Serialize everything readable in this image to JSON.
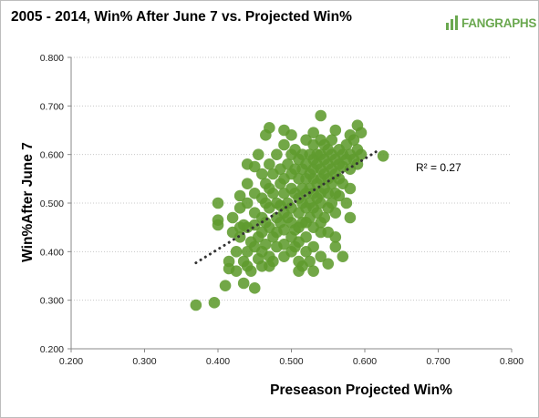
{
  "chart_data": {
    "type": "scatter",
    "title": "2005 - 2014, Win% After June 7 vs. Projected Win%",
    "xlabel": "Preseason Projected Win%",
    "ylabel": "Win%After  June 7",
    "xlim": [
      0.2,
      0.8
    ],
    "ylim": [
      0.2,
      0.8
    ],
    "xticks": [
      "0.200",
      "0.300",
      "0.400",
      "0.500",
      "0.600",
      "0.700",
      "0.800"
    ],
    "yticks": [
      "0.200",
      "0.300",
      "0.400",
      "0.500",
      "0.600",
      "0.700",
      "0.800"
    ],
    "grid": "horizontal dotted",
    "trendline": {
      "style": "dotted",
      "color": "#333333",
      "x": [
        0.37,
        0.62
      ],
      "y": [
        0.377,
        0.61
      ]
    },
    "annotation": "R² = 0.27",
    "point_color": "#5f9b2d",
    "points": [
      [
        0.37,
        0.29
      ],
      [
        0.395,
        0.295
      ],
      [
        0.4,
        0.5
      ],
      [
        0.4,
        0.465
      ],
      [
        0.4,
        0.455
      ],
      [
        0.41,
        0.33
      ],
      [
        0.415,
        0.38
      ],
      [
        0.415,
        0.365
      ],
      [
        0.42,
        0.47
      ],
      [
        0.42,
        0.44
      ],
      [
        0.425,
        0.36
      ],
      [
        0.425,
        0.4
      ],
      [
        0.43,
        0.43
      ],
      [
        0.43,
        0.515
      ],
      [
        0.43,
        0.49
      ],
      [
        0.43,
        0.45
      ],
      [
        0.435,
        0.455
      ],
      [
        0.435,
        0.38
      ],
      [
        0.435,
        0.335
      ],
      [
        0.44,
        0.58
      ],
      [
        0.44,
        0.54
      ],
      [
        0.44,
        0.5
      ],
      [
        0.44,
        0.45
      ],
      [
        0.44,
        0.4
      ],
      [
        0.44,
        0.37
      ],
      [
        0.445,
        0.42
      ],
      [
        0.445,
        0.36
      ],
      [
        0.45,
        0.575
      ],
      [
        0.45,
        0.52
      ],
      [
        0.45,
        0.48
      ],
      [
        0.45,
        0.455
      ],
      [
        0.45,
        0.41
      ],
      [
        0.45,
        0.325
      ],
      [
        0.455,
        0.6
      ],
      [
        0.455,
        0.43
      ],
      [
        0.455,
        0.385
      ],
      [
        0.46,
        0.56
      ],
      [
        0.46,
        0.51
      ],
      [
        0.46,
        0.47
      ],
      [
        0.46,
        0.44
      ],
      [
        0.46,
        0.4
      ],
      [
        0.46,
        0.37
      ],
      [
        0.465,
        0.64
      ],
      [
        0.465,
        0.54
      ],
      [
        0.465,
        0.5
      ],
      [
        0.465,
        0.46
      ],
      [
        0.465,
        0.415
      ],
      [
        0.47,
        0.655
      ],
      [
        0.47,
        0.58
      ],
      [
        0.47,
        0.53
      ],
      [
        0.47,
        0.49
      ],
      [
        0.47,
        0.45
      ],
      [
        0.47,
        0.39
      ],
      [
        0.47,
        0.37
      ],
      [
        0.475,
        0.56
      ],
      [
        0.475,
        0.52
      ],
      [
        0.475,
        0.43
      ],
      [
        0.475,
        0.38
      ],
      [
        0.48,
        0.6
      ],
      [
        0.48,
        0.5
      ],
      [
        0.48,
        0.47
      ],
      [
        0.48,
        0.44
      ],
      [
        0.48,
        0.41
      ],
      [
        0.485,
        0.57
      ],
      [
        0.485,
        0.54
      ],
      [
        0.485,
        0.495
      ],
      [
        0.485,
        0.46
      ],
      [
        0.49,
        0.65
      ],
      [
        0.49,
        0.62
      ],
      [
        0.49,
        0.55
      ],
      [
        0.49,
        0.52
      ],
      [
        0.49,
        0.48
      ],
      [
        0.49,
        0.445
      ],
      [
        0.49,
        0.415
      ],
      [
        0.49,
        0.39
      ],
      [
        0.495,
        0.58
      ],
      [
        0.495,
        0.5
      ],
      [
        0.495,
        0.47
      ],
      [
        0.5,
        0.64
      ],
      [
        0.5,
        0.6
      ],
      [
        0.5,
        0.56
      ],
      [
        0.5,
        0.53
      ],
      [
        0.5,
        0.49
      ],
      [
        0.5,
        0.46
      ],
      [
        0.5,
        0.43
      ],
      [
        0.5,
        0.4
      ],
      [
        0.505,
        0.61
      ],
      [
        0.505,
        0.57
      ],
      [
        0.505,
        0.52
      ],
      [
        0.505,
        0.445
      ],
      [
        0.505,
        0.41
      ],
      [
        0.51,
        0.59
      ],
      [
        0.51,
        0.55
      ],
      [
        0.51,
        0.51
      ],
      [
        0.51,
        0.48
      ],
      [
        0.51,
        0.45
      ],
      [
        0.51,
        0.42
      ],
      [
        0.51,
        0.38
      ],
      [
        0.51,
        0.36
      ],
      [
        0.515,
        0.6
      ],
      [
        0.515,
        0.57
      ],
      [
        0.515,
        0.53
      ],
      [
        0.515,
        0.5
      ],
      [
        0.515,
        0.46
      ],
      [
        0.515,
        0.37
      ],
      [
        0.52,
        0.63
      ],
      [
        0.52,
        0.58
      ],
      [
        0.52,
        0.55
      ],
      [
        0.52,
        0.52
      ],
      [
        0.52,
        0.49
      ],
      [
        0.52,
        0.46
      ],
      [
        0.52,
        0.43
      ],
      [
        0.52,
        0.4
      ],
      [
        0.525,
        0.6
      ],
      [
        0.525,
        0.56
      ],
      [
        0.525,
        0.53
      ],
      [
        0.525,
        0.5
      ],
      [
        0.525,
        0.47
      ],
      [
        0.525,
        0.38
      ],
      [
        0.53,
        0.645
      ],
      [
        0.53,
        0.62
      ],
      [
        0.53,
        0.59
      ],
      [
        0.53,
        0.57
      ],
      [
        0.53,
        0.55
      ],
      [
        0.53,
        0.52
      ],
      [
        0.53,
        0.49
      ],
      [
        0.53,
        0.45
      ],
      [
        0.53,
        0.41
      ],
      [
        0.53,
        0.36
      ],
      [
        0.535,
        0.6
      ],
      [
        0.535,
        0.58
      ],
      [
        0.535,
        0.54
      ],
      [
        0.535,
        0.51
      ],
      [
        0.535,
        0.48
      ],
      [
        0.54,
        0.68
      ],
      [
        0.54,
        0.63
      ],
      [
        0.54,
        0.6
      ],
      [
        0.54,
        0.57
      ],
      [
        0.54,
        0.55
      ],
      [
        0.54,
        0.52
      ],
      [
        0.54,
        0.5
      ],
      [
        0.54,
        0.46
      ],
      [
        0.54,
        0.44
      ],
      [
        0.54,
        0.39
      ],
      [
        0.545,
        0.62
      ],
      [
        0.545,
        0.59
      ],
      [
        0.545,
        0.56
      ],
      [
        0.545,
        0.53
      ],
      [
        0.545,
        0.47
      ],
      [
        0.55,
        0.61
      ],
      [
        0.55,
        0.58
      ],
      [
        0.55,
        0.55
      ],
      [
        0.55,
        0.52
      ],
      [
        0.55,
        0.49
      ],
      [
        0.55,
        0.44
      ],
      [
        0.55,
        0.375
      ],
      [
        0.555,
        0.63
      ],
      [
        0.555,
        0.6
      ],
      [
        0.555,
        0.57
      ],
      [
        0.555,
        0.54
      ],
      [
        0.555,
        0.5
      ],
      [
        0.56,
        0.65
      ],
      [
        0.56,
        0.59
      ],
      [
        0.56,
        0.56
      ],
      [
        0.56,
        0.52
      ],
      [
        0.56,
        0.48
      ],
      [
        0.56,
        0.43
      ],
      [
        0.56,
        0.41
      ],
      [
        0.565,
        0.61
      ],
      [
        0.565,
        0.58
      ],
      [
        0.565,
        0.55
      ],
      [
        0.565,
        0.515
      ],
      [
        0.57,
        0.6
      ],
      [
        0.57,
        0.575
      ],
      [
        0.57,
        0.54
      ],
      [
        0.57,
        0.39
      ],
      [
        0.575,
        0.62
      ],
      [
        0.575,
        0.59
      ],
      [
        0.575,
        0.5
      ],
      [
        0.58,
        0.64
      ],
      [
        0.58,
        0.6
      ],
      [
        0.58,
        0.57
      ],
      [
        0.58,
        0.53
      ],
      [
        0.58,
        0.47
      ],
      [
        0.585,
        0.63
      ],
      [
        0.585,
        0.59
      ],
      [
        0.59,
        0.66
      ],
      [
        0.59,
        0.61
      ],
      [
        0.59,
        0.58
      ],
      [
        0.595,
        0.645
      ],
      [
        0.595,
        0.6
      ],
      [
        0.625,
        0.597
      ]
    ]
  },
  "brand": {
    "logo_text": "FANGRAPHS",
    "logo_color": "#6aa84f"
  }
}
